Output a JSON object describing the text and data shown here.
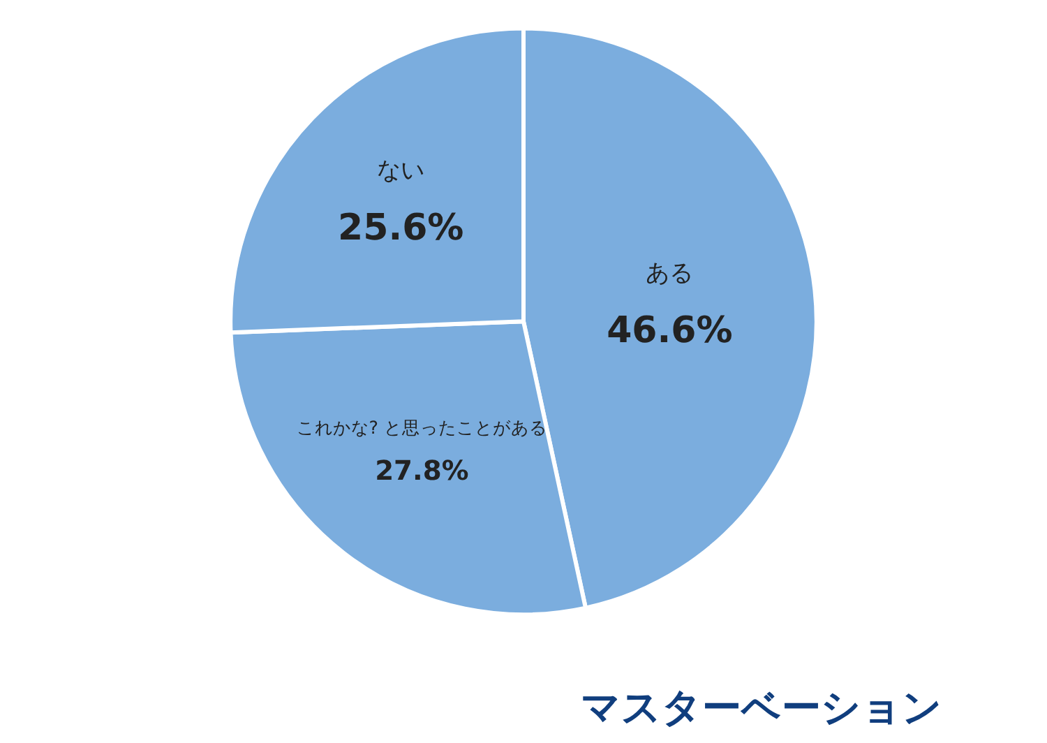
{
  "chart_data": {
    "type": "pie",
    "title": "マスターベーション",
    "categories": [
      "ある",
      "これかな? と思ったことがある",
      "ない"
    ],
    "values": [
      46.6,
      27.8,
      25.6
    ],
    "value_labels": [
      "46.6%",
      "27.8%",
      "25.6%"
    ],
    "colors": [
      "#7badde",
      "#7badde",
      "#7badde"
    ],
    "legend": false
  }
}
